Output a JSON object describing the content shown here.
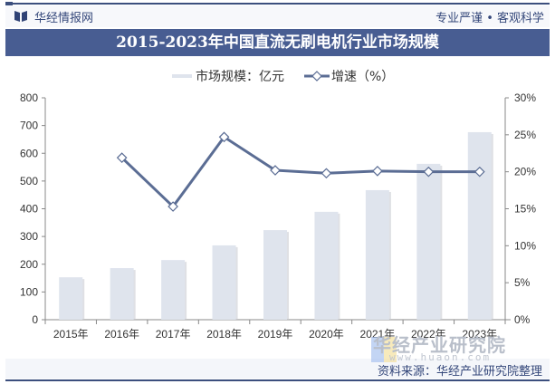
{
  "header": {
    "brand": "华经情报网",
    "slogan": "专业严谨 • 客观科学",
    "logo_icon": "book-icon"
  },
  "title": "2015-2023年中国直流无刷电机行业市场规模",
  "legend": {
    "bar_label": "市场规模：亿元",
    "line_label": "增速（%）"
  },
  "footer": {
    "source": "资料来源：华经产业研究院整理",
    "watermark": "华经产业研究院",
    "watermark_url": "www.huaon.com"
  },
  "colors": {
    "title_bg": "#485d92",
    "bar": "#dfe4ed",
    "line": "#5b6d94",
    "accent_text": "#34477a"
  },
  "chart_data": {
    "type": "bar",
    "title": "2015-2023年中国直流无刷电机行业市场规模",
    "categories": [
      "2015年",
      "2016年",
      "2017年",
      "2018年",
      "2019年",
      "2020年",
      "2021年",
      "2022年",
      "2023年"
    ],
    "series": [
      {
        "name": "市场规模：亿元",
        "type": "bar",
        "axis": "left",
        "values": [
          153,
          186,
          215,
          268,
          323,
          389,
          467,
          562,
          676
        ]
      },
      {
        "name": "增速（%）",
        "type": "line",
        "axis": "right",
        "values": [
          null,
          21.9,
          15.3,
          24.7,
          20.2,
          19.8,
          20.1,
          20.0,
          20.0
        ]
      }
    ],
    "left_axis": {
      "ylim": [
        0,
        800
      ],
      "ticks": [
        "0",
        "100",
        "200",
        "300",
        "400",
        "500",
        "600",
        "700",
        "800"
      ]
    },
    "right_axis": {
      "ylim": [
        0,
        30
      ],
      "ticks": [
        "0%",
        "5%",
        "10%",
        "15%",
        "20%",
        "25%",
        "30%"
      ]
    },
    "xlabel": "",
    "ylabel": "",
    "grid": false,
    "legend_position": "top"
  }
}
